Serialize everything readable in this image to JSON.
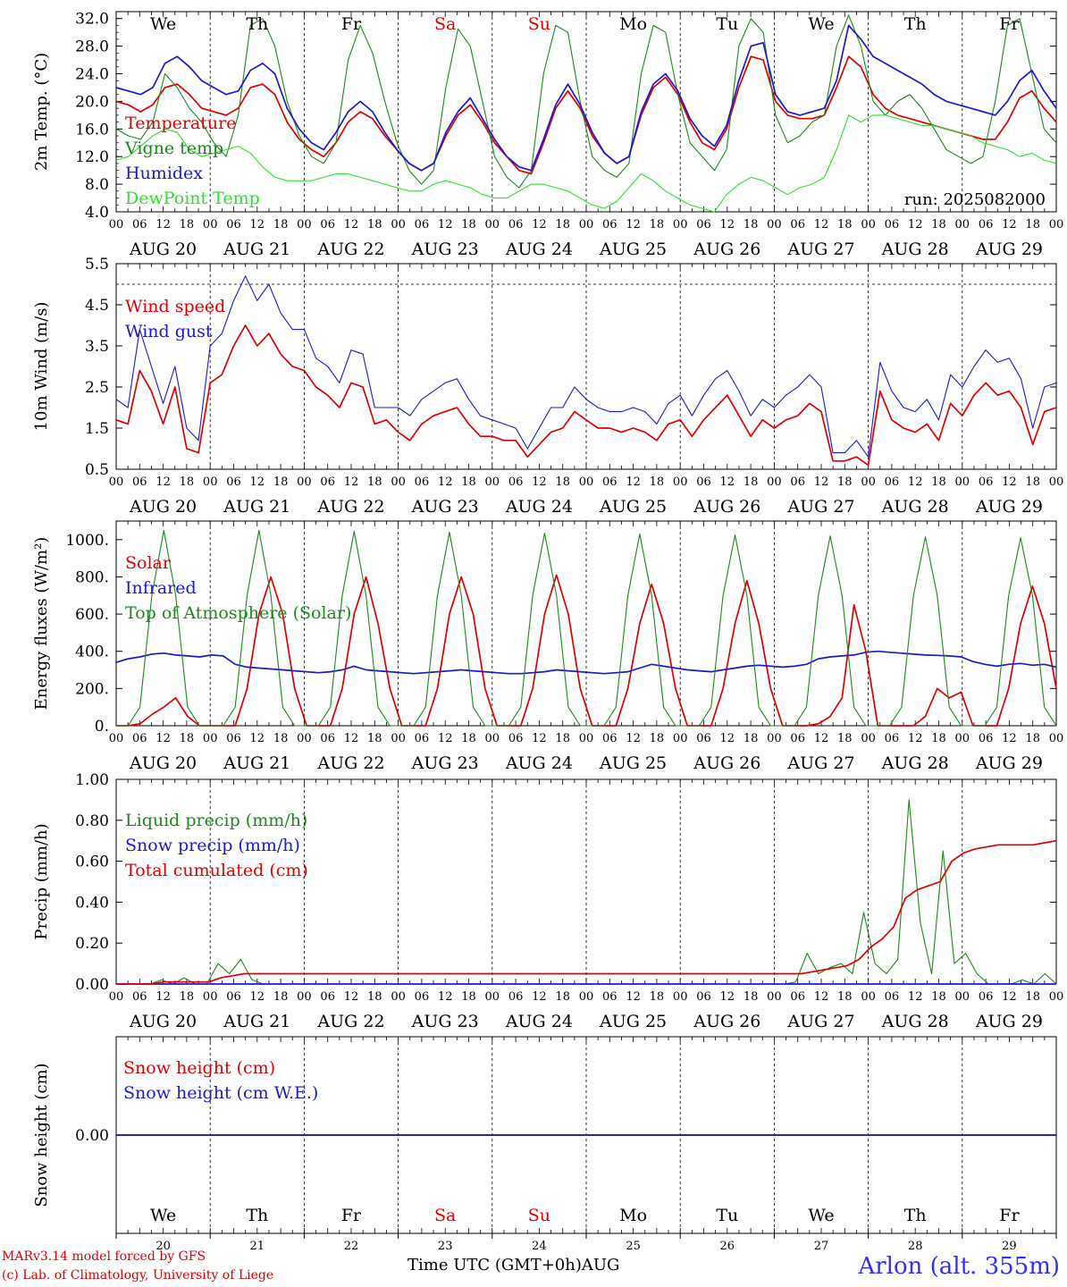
{
  "run_label": "run: 2025082000",
  "x_axis": {
    "month_label": "AUG",
    "date_labels": [
      "AUG 20",
      "AUG 21",
      "AUG 22",
      "AUG 23",
      "AUG 24",
      "AUG 25",
      "AUG 26",
      "AUG 27",
      "AUG 28",
      "AUG 29"
    ],
    "day_numbers": [
      "20",
      "21",
      "22",
      "23",
      "24",
      "25",
      "26",
      "27",
      "28",
      "29"
    ],
    "weekdays": [
      "We",
      "Th",
      "Fr",
      "Sa",
      "Su",
      "Mo",
      "Tu",
      "We",
      "Th",
      "Fr"
    ],
    "weekend_color": "#e00000",
    "hour_ticks": [
      "00",
      "06",
      "12",
      "18"
    ],
    "xlabel": "Time UTC (GMT+0h)"
  },
  "footer": {
    "model_line": "MARv3.14 model forced by GFS",
    "lab_line": "(c) Lab. of Climatology, University of Liege",
    "station": "Arlon (alt. 355m)"
  },
  "chart_data": [
    {
      "id": "temp",
      "type": "line",
      "ylabel": "2m Temp. (°C)",
      "ylim": [
        4,
        33
      ],
      "yticks": [
        "4.0",
        "8.0",
        "12.0",
        "16.0",
        "20.0",
        "24.0",
        "28.0",
        "32.0"
      ],
      "x_hours_step": 3,
      "series": [
        {
          "name": "Temperature",
          "color": "#e00000",
          "values": [
            20,
            19.5,
            18.5,
            19.5,
            22,
            22.5,
            21,
            19,
            18.5,
            18,
            19,
            22,
            22.5,
            21,
            17,
            14.5,
            13,
            12,
            14,
            17,
            18.5,
            17.5,
            15,
            13,
            11,
            10,
            11,
            15,
            18,
            19.5,
            17,
            14,
            12,
            10,
            9.5,
            14,
            19,
            21.5,
            19,
            15,
            12.5,
            11,
            12,
            18,
            22,
            23.5,
            21,
            17,
            14,
            13,
            16,
            22,
            26.5,
            26,
            20,
            18,
            17.5,
            17.5,
            18,
            22,
            26.5,
            25,
            21,
            19,
            18,
            17.5,
            17,
            16.5,
            16,
            15.5,
            15,
            14.5,
            14.5,
            17,
            20.5,
            21.5,
            19,
            17
          ]
        },
        {
          "name": "Vigne temp",
          "color": "#1a8a1a",
          "values": [
            16,
            15,
            14.5,
            17,
            24,
            22,
            19,
            17,
            14,
            12,
            18,
            31,
            32,
            28,
            20,
            15,
            12,
            11,
            14,
            26,
            31,
            27,
            20,
            14,
            10,
            8,
            10,
            22,
            30.5,
            28,
            20,
            12,
            9,
            7.5,
            10,
            24,
            31,
            30,
            20,
            12,
            10,
            9,
            11,
            24,
            31,
            30,
            21,
            14,
            12,
            10,
            13,
            28,
            32,
            30,
            18,
            14,
            15,
            17,
            18,
            28,
            32.5,
            28,
            20,
            18,
            20,
            21,
            19,
            16,
            13,
            12,
            11,
            12,
            20,
            31,
            32,
            24,
            16,
            14
          ]
        },
        {
          "name": "Humidex",
          "color": "#1a1ad0",
          "values": [
            22,
            21.5,
            21,
            22,
            25.5,
            26.5,
            25,
            23,
            22,
            21,
            21.5,
            24.5,
            25.5,
            24,
            19,
            16,
            14,
            13,
            15.5,
            18.5,
            20,
            18.5,
            15.5,
            13,
            11,
            10,
            11,
            15.5,
            18.5,
            20.5,
            17.5,
            14.5,
            12,
            10.5,
            10,
            14.5,
            19.5,
            22.5,
            19.5,
            15.5,
            12.5,
            11,
            12,
            18.5,
            22.5,
            24,
            21.5,
            17.5,
            15,
            13.5,
            16.5,
            23,
            28,
            28.5,
            21,
            18.5,
            18,
            18.5,
            19,
            23,
            31,
            29,
            26.5,
            25.5,
            24.5,
            23.5,
            22.5,
            21,
            20,
            19.5,
            19,
            18.5,
            18,
            20,
            23,
            24.5,
            21.5,
            19
          ]
        },
        {
          "name": "DewPoint Temp",
          "color": "#2ee02e",
          "values": [
            11.5,
            12,
            13.5,
            15,
            16,
            15.5,
            13,
            12,
            12.5,
            13,
            13.5,
            12.5,
            10.5,
            9,
            8.5,
            8.5,
            8.5,
            9,
            9.5,
            9.5,
            9,
            8.5,
            8,
            7.5,
            7,
            7,
            8,
            8.5,
            8,
            7.5,
            6.5,
            6,
            6,
            7,
            8,
            8,
            7.5,
            7,
            6,
            5,
            4.5,
            5.5,
            7.5,
            9.5,
            8.5,
            7,
            6,
            5,
            4.5,
            4,
            6.5,
            8,
            9,
            8.5,
            7.5,
            6.5,
            7.5,
            8,
            9,
            13,
            18,
            17,
            18,
            18,
            17.5,
            17,
            16.5,
            16.5,
            16,
            15.5,
            15,
            14,
            13.5,
            13,
            12,
            12.5,
            11.5,
            11
          ]
        }
      ]
    },
    {
      "id": "wind",
      "type": "line",
      "ylabel": "10m Wind (m/s)",
      "ylim": [
        0.5,
        5.5
      ],
      "yticks": [
        "0.5",
        "1.5",
        "2.5",
        "3.5",
        "4.5",
        "5.5"
      ],
      "reference_line": 5.0,
      "x_hours_step": 3,
      "series": [
        {
          "name": "Wind speed",
          "color": "#e00000",
          "values": [
            1.7,
            1.6,
            2.9,
            2.4,
            1.6,
            2.5,
            1.0,
            0.9,
            2.6,
            2.8,
            3.5,
            4.0,
            3.5,
            3.8,
            3.3,
            3.0,
            2.9,
            2.5,
            2.3,
            2.0,
            2.6,
            2.5,
            1.6,
            1.7,
            1.4,
            1.2,
            1.6,
            1.8,
            1.9,
            2.0,
            1.6,
            1.3,
            1.3,
            1.2,
            1.2,
            0.8,
            1.1,
            1.4,
            1.5,
            1.9,
            1.7,
            1.5,
            1.5,
            1.4,
            1.5,
            1.4,
            1.2,
            1.6,
            1.7,
            1.3,
            1.7,
            2.0,
            2.3,
            1.8,
            1.3,
            1.7,
            1.5,
            1.7,
            1.8,
            2.1,
            1.9,
            0.7,
            0.7,
            0.8,
            0.6,
            2.4,
            1.7,
            1.5,
            1.4,
            1.6,
            1.2,
            2.1,
            1.8,
            2.3,
            2.6,
            2.3,
            2.4,
            2.0,
            1.1,
            1.9,
            2.0
          ]
        },
        {
          "name": "Wind gust",
          "color": "#1a1ad0",
          "values": [
            2.2,
            2.0,
            3.9,
            3.0,
            2.1,
            3.0,
            1.5,
            1.2,
            3.5,
            3.8,
            4.6,
            5.2,
            4.6,
            5.0,
            4.3,
            3.9,
            3.9,
            3.2,
            3.0,
            2.6,
            3.4,
            3.3,
            2.0,
            2.0,
            2.0,
            1.8,
            2.2,
            2.4,
            2.6,
            2.7,
            2.2,
            1.8,
            1.7,
            1.6,
            1.5,
            1.0,
            1.5,
            2.0,
            2.0,
            2.5,
            2.2,
            2.0,
            1.9,
            1.9,
            2.0,
            1.9,
            1.6,
            2.1,
            2.3,
            1.8,
            2.3,
            2.7,
            2.9,
            2.4,
            1.8,
            2.2,
            2.0,
            2.3,
            2.5,
            2.8,
            2.5,
            0.9,
            0.9,
            1.2,
            0.8,
            3.1,
            2.4,
            2.0,
            1.9,
            2.2,
            1.7,
            2.8,
            2.5,
            3.0,
            3.4,
            3.1,
            3.2,
            2.7,
            1.5,
            2.5,
            2.6
          ]
        }
      ]
    },
    {
      "id": "energy",
      "type": "line",
      "ylabel": "Energy fluxes (W/m²)",
      "ylim": [
        0,
        1100
      ],
      "yticks": [
        "0.",
        "200.",
        "400.",
        "600.",
        "800.",
        "1000."
      ],
      "x_hours_step": 3,
      "series": [
        {
          "name": "Solar",
          "color": "#e00000",
          "values": [
            0,
            0,
            10,
            60,
            100,
            150,
            50,
            0,
            0,
            0,
            0,
            200,
            600,
            800,
            600,
            200,
            0,
            0,
            0,
            200,
            600,
            800,
            550,
            200,
            0,
            0,
            0,
            200,
            600,
            800,
            600,
            200,
            0,
            0,
            0,
            200,
            600,
            810,
            600,
            200,
            0,
            0,
            0,
            200,
            550,
            760,
            550,
            200,
            0,
            0,
            0,
            200,
            550,
            780,
            550,
            200,
            0,
            0,
            0,
            10,
            50,
            150,
            650,
            400,
            0,
            0,
            0,
            0,
            50,
            200,
            150,
            180,
            0,
            0,
            0,
            200,
            550,
            750,
            550,
            200
          ]
        },
        {
          "name": "Infrared",
          "color": "#1a1ad0",
          "values": [
            340,
            360,
            370,
            385,
            390,
            380,
            375,
            370,
            380,
            375,
            330,
            315,
            310,
            305,
            300,
            295,
            290,
            285,
            290,
            300,
            320,
            300,
            295,
            290,
            285,
            280,
            285,
            290,
            295,
            300,
            295,
            290,
            285,
            280,
            280,
            285,
            290,
            300,
            295,
            290,
            285,
            280,
            285,
            290,
            310,
            330,
            320,
            310,
            300,
            295,
            290,
            300,
            310,
            320,
            325,
            320,
            315,
            320,
            330,
            360,
            370,
            375,
            380,
            395,
            400,
            395,
            390,
            385,
            380,
            378,
            375,
            370,
            345,
            330,
            320,
            330,
            335,
            325,
            330,
            315
          ]
        },
        {
          "name": "Top of Atmosphere (Solar)",
          "color": "#1a8a1a",
          "values": [
            0,
            0,
            100,
            700,
            1050,
            700,
            100,
            0,
            0,
            0,
            100,
            700,
            1050,
            700,
            100,
            0,
            0,
            0,
            100,
            700,
            1045,
            700,
            100,
            0,
            0,
            0,
            100,
            700,
            1040,
            700,
            100,
            0,
            0,
            0,
            100,
            700,
            1035,
            700,
            100,
            0,
            0,
            0,
            100,
            700,
            1030,
            700,
            100,
            0,
            0,
            0,
            100,
            700,
            1025,
            700,
            100,
            0,
            0,
            0,
            100,
            700,
            1020,
            700,
            100,
            0,
            0,
            0,
            100,
            700,
            1015,
            700,
            100,
            0,
            0,
            0,
            100,
            700,
            1010,
            700,
            100,
            0
          ]
        }
      ]
    },
    {
      "id": "precip",
      "type": "line",
      "ylabel": "Precip (mm/h)",
      "ylim": [
        0,
        1.0
      ],
      "yticks": [
        "0.00",
        "0.20",
        "0.40",
        "0.60",
        "0.80",
        "1.00"
      ],
      "x_hours_step": 3,
      "series": [
        {
          "name": "Liquid precip (mm/h)",
          "color": "#1a8a1a",
          "values": [
            0,
            0,
            0,
            0,
            0.02,
            0,
            0.03,
            0,
            0,
            0.1,
            0.05,
            0.12,
            0.02,
            0,
            0,
            0,
            0,
            0,
            0,
            0,
            0,
            0,
            0,
            0,
            0,
            0,
            0,
            0,
            0,
            0,
            0,
            0,
            0,
            0,
            0,
            0,
            0,
            0,
            0,
            0,
            0,
            0,
            0,
            0,
            0,
            0,
            0,
            0,
            0,
            0,
            0,
            0,
            0,
            0,
            0,
            0,
            0,
            0,
            0,
            0,
            0.01,
            0.15,
            0.05,
            0.08,
            0.1,
            0.05,
            0.35,
            0.1,
            0.05,
            0.12,
            0.9,
            0.3,
            0.05,
            0.65,
            0.1,
            0.15,
            0.05,
            0,
            0,
            0,
            0.02,
            0,
            0.05,
            0
          ]
        },
        {
          "name": "Snow precip (mm/h)",
          "color": "#1a1ad0",
          "values": [
            0,
            0
          ]
        },
        {
          "name": "Total cumulated (cm)",
          "color": "#e00000",
          "values": [
            0,
            0,
            0,
            0,
            0.01,
            0.01,
            0.01,
            0.01,
            0.01,
            0.03,
            0.04,
            0.05,
            0.05,
            0.05,
            0.05,
            0.05,
            0.05,
            0.05,
            0.05,
            0.05,
            0.05,
            0.05,
            0.05,
            0.05,
            0.05,
            0.05,
            0.05,
            0.05,
            0.05,
            0.05,
            0.05,
            0.05,
            0.05,
            0.05,
            0.05,
            0.05,
            0.05,
            0.05,
            0.05,
            0.05,
            0.05,
            0.05,
            0.05,
            0.05,
            0.05,
            0.05,
            0.05,
            0.05,
            0.05,
            0.05,
            0.05,
            0.05,
            0.05,
            0.05,
            0.05,
            0.05,
            0.05,
            0.05,
            0.05,
            0.05,
            0.06,
            0.07,
            0.08,
            0.09,
            0.12,
            0.18,
            0.22,
            0.28,
            0.42,
            0.46,
            0.48,
            0.5,
            0.6,
            0.64,
            0.66,
            0.67,
            0.68,
            0.68,
            0.68,
            0.68,
            0.69,
            0.7
          ]
        }
      ]
    },
    {
      "id": "snow",
      "type": "line",
      "ylabel": "Snow height (cm)",
      "ylim": [
        -1,
        1
      ],
      "yticks": [
        "0.00"
      ],
      "x_hours_step": 3,
      "series": [
        {
          "name": "Snow height (cm)",
          "color": "#e00000",
          "values": [
            0,
            0
          ]
        },
        {
          "name": "Snow height (cm W.E.)",
          "color": "#1a1ad0",
          "values": [
            0,
            0
          ]
        }
      ]
    }
  ]
}
